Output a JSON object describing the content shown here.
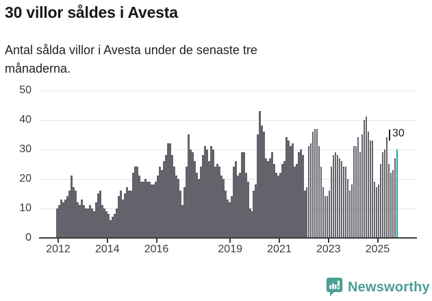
{
  "title": "30 villor såldes i Avesta",
  "subtitle": {
    "lines": [
      "Antal sålda villor i Avesta under de senaste tre",
      "månaderna."
    ]
  },
  "annotation": {
    "last_value_label": "30"
  },
  "footer": {
    "brand": "Newsworthy"
  },
  "colors": {
    "bar": "#63636b",
    "highlight": "#1aa4a6",
    "gridline": "#e4e4e4",
    "axis": "#3a3a3a",
    "brand_teal": "#4b9f95"
  },
  "chart_data": {
    "type": "bar",
    "title": "30 villor såldes i Avesta",
    "subtitle": "Antal sålda villor i Avesta under de senaste tre månaderna.",
    "unit": "sålda villor (rullande 3 månader)",
    "start_month": "2012-01",
    "end_month": "2025-11",
    "ylim": [
      0,
      50
    ],
    "y_ticks": [
      0,
      10,
      20,
      30,
      40,
      50
    ],
    "x_tick_years": [
      2012,
      2014,
      2016,
      2019,
      2021,
      2023,
      2025
    ],
    "x_tick_labels": [
      "2012",
      "2014",
      "2016",
      "2019",
      "2021",
      "2023",
      "2025"
    ],
    "grid": "horizontal",
    "legend": "none",
    "highlight_last": true,
    "last_value": 30,
    "last_value_label": "30",
    "values": [
      10,
      11,
      13,
      12,
      13,
      14,
      16,
      21,
      17,
      16,
      12,
      11,
      13,
      11,
      10,
      10,
      11,
      10,
      9,
      12,
      15,
      16,
      11,
      10,
      9,
      8,
      6,
      7,
      8,
      10,
      14,
      16,
      13,
      15,
      17,
      16,
      16,
      22,
      24,
      24,
      21,
      19,
      19,
      20,
      19,
      19,
      18,
      18,
      19,
      21,
      24,
      23,
      26,
      28,
      32,
      32,
      28,
      24,
      21,
      20,
      16,
      11,
      17,
      24,
      35,
      30,
      29,
      26,
      22,
      20,
      24,
      28,
      31,
      30,
      26,
      31,
      30,
      24,
      25,
      24,
      21,
      20,
      16,
      13,
      12,
      14,
      24,
      26,
      21,
      22,
      29,
      29,
      22,
      19,
      10,
      9,
      16,
      18,
      35,
      43,
      38,
      36,
      27,
      26,
      27,
      29,
      25,
      22,
      21,
      22,
      25,
      26,
      34,
      33,
      31,
      32,
      24,
      25,
      29,
      30,
      28,
      16,
      17,
      31,
      32,
      36,
      37,
      37,
      31,
      24,
      17,
      14,
      14,
      16,
      24,
      28,
      29,
      28,
      27,
      26,
      24,
      24,
      20,
      16,
      18,
      31,
      31,
      34,
      29,
      35,
      40,
      41,
      36,
      33,
      33,
      19,
      17,
      18,
      25,
      29,
      30,
      34,
      25,
      22,
      23,
      27,
      30
    ]
  }
}
